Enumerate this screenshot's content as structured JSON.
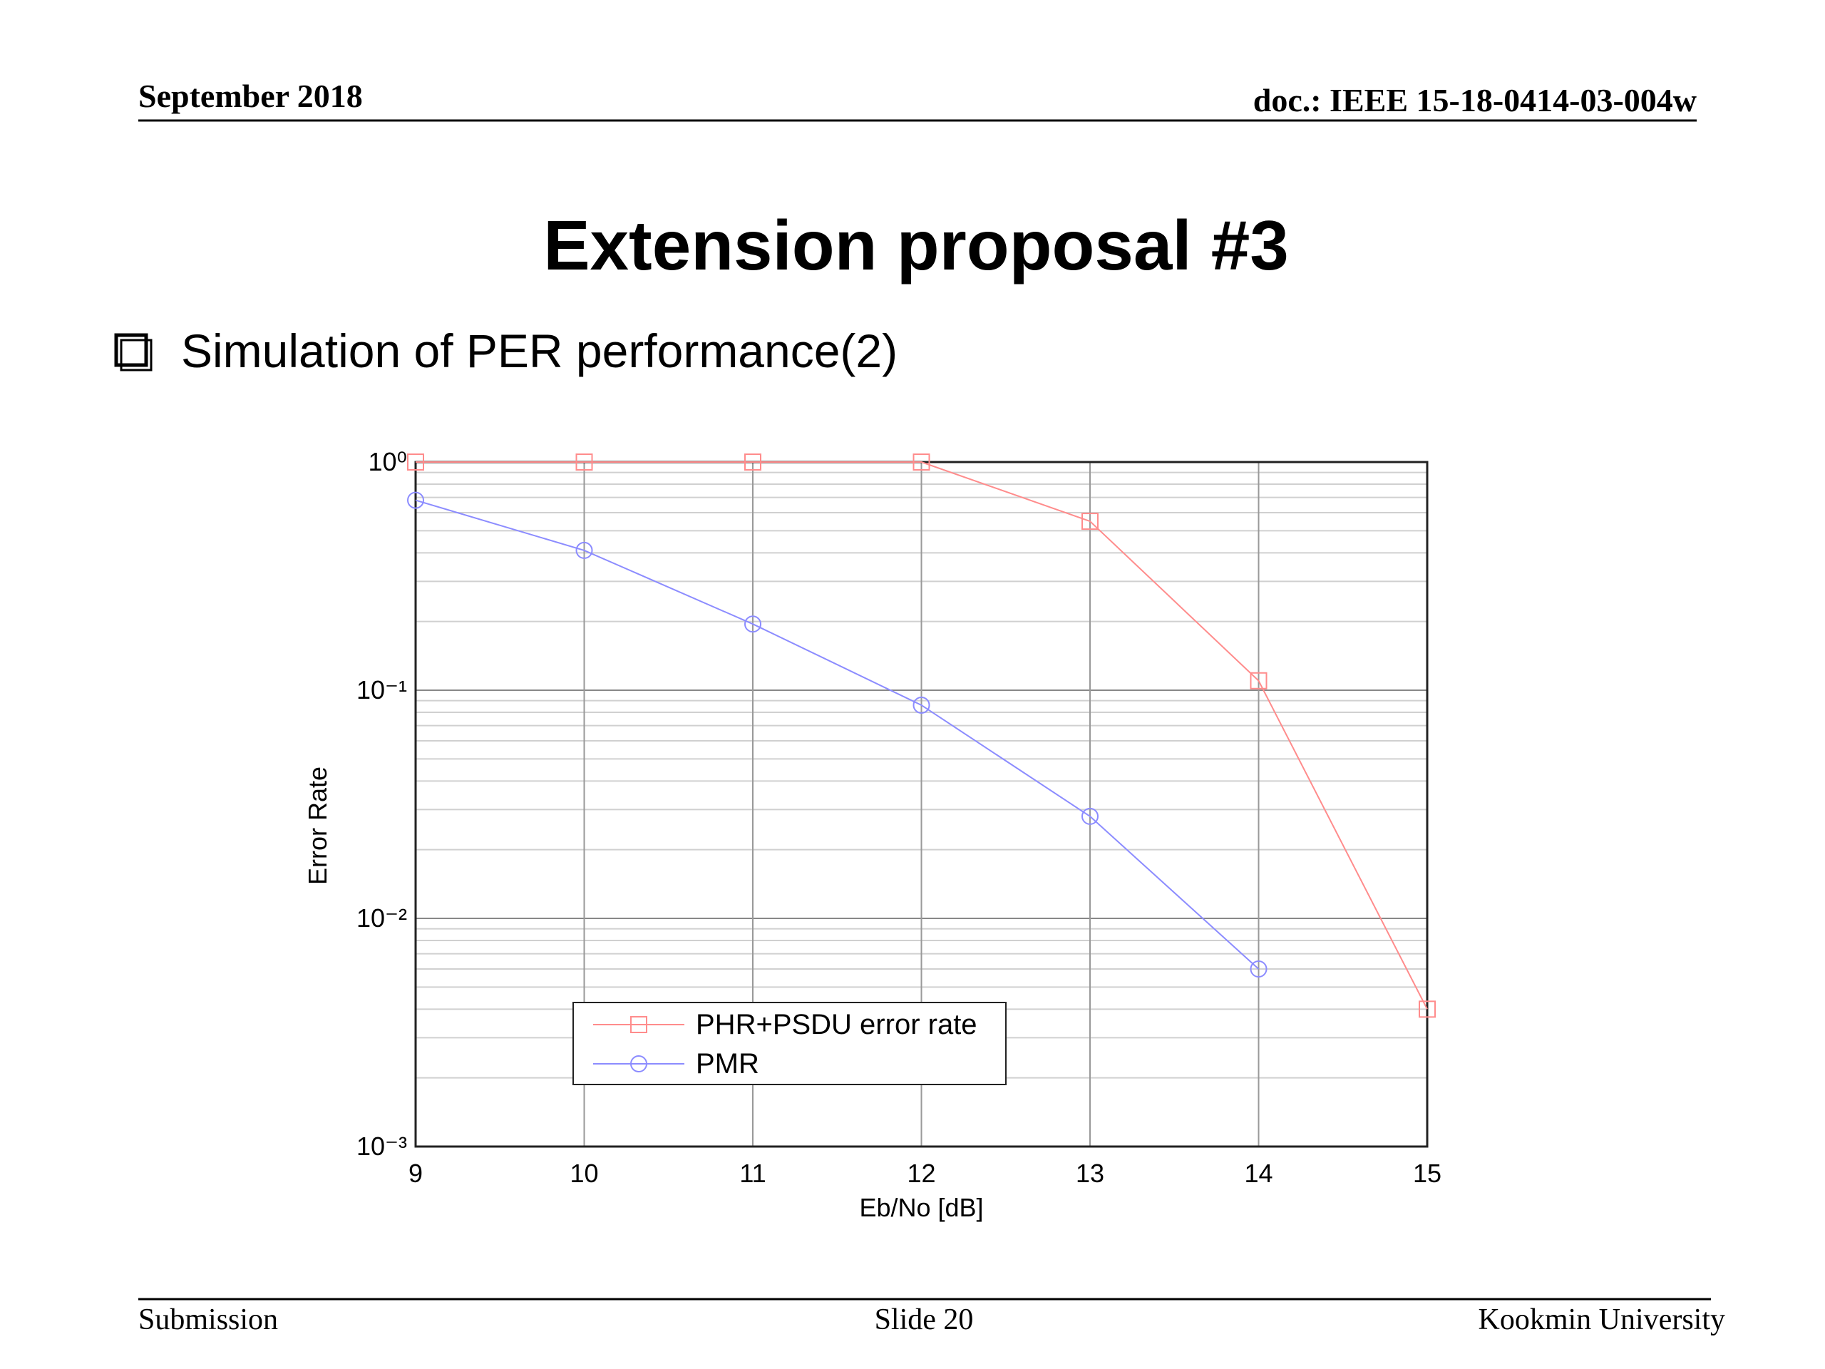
{
  "header": {
    "date": "September 2018",
    "doc": "doc.: IEEE 15-18-0414-03-004w"
  },
  "title": "Extension proposal #3",
  "bullet": "Simulation of PER performance(2)",
  "chart_data": {
    "type": "line",
    "xlabel": "Eb/No [dB]",
    "ylabel": "Error Rate",
    "x": [
      9,
      10,
      11,
      12,
      13,
      14,
      15
    ],
    "series": [
      {
        "name": "PHR+PSDU error rate",
        "color": "#ff8c8c",
        "marker": "square",
        "values": [
          1,
          1,
          1,
          1,
          0.55,
          0.11,
          0.004
        ]
      },
      {
        "name": "PMR",
        "color": "#8c8cff",
        "marker": "circle",
        "values": [
          0.68,
          0.41,
          0.195,
          0.086,
          0.028,
          0.006,
          null
        ]
      }
    ],
    "xlim": [
      9,
      15
    ],
    "xticks": [
      9,
      10,
      11,
      12,
      13,
      14,
      15
    ],
    "ylim": [
      0.001,
      1
    ],
    "yscale": "log",
    "yticks": [
      {
        "value": 1,
        "label": "10⁰"
      },
      {
        "value": 0.1,
        "label": "10⁻¹"
      },
      {
        "value": 0.01,
        "label": "10⁻²"
      },
      {
        "value": 0.001,
        "label": "10⁻³"
      }
    ],
    "grid": true,
    "legend": "lower left"
  },
  "footer": {
    "left": "Submission",
    "center": "Slide 20",
    "right": "Kookmin University"
  }
}
